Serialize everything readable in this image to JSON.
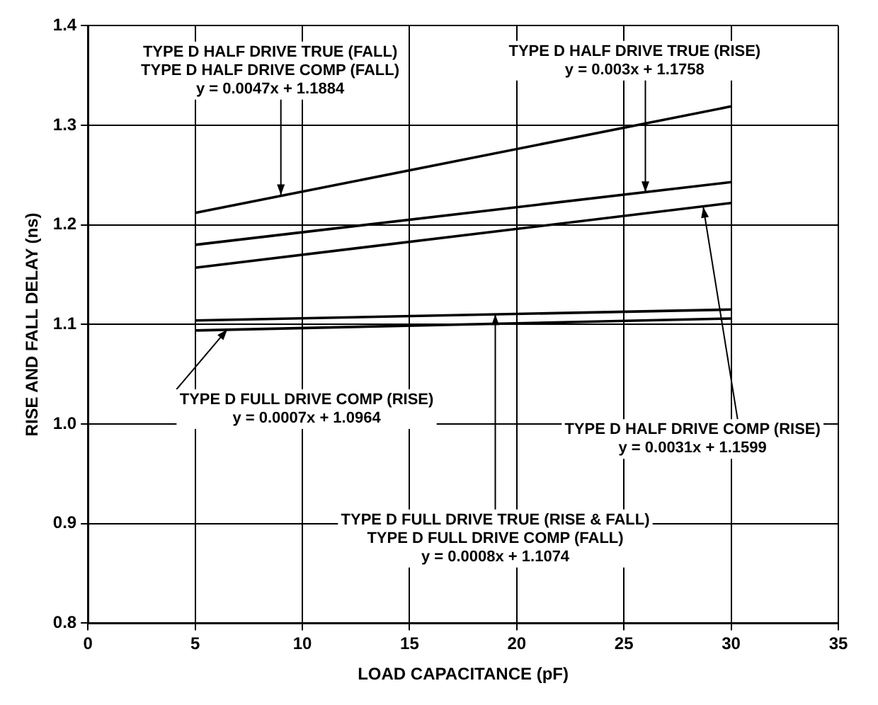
{
  "chart_data": {
    "type": "line",
    "xlabel": "LOAD CAPACITANCE (pF)",
    "ylabel": "RISE AND FALL DELAY (ns)",
    "x": [
      5,
      30
    ],
    "series": [
      {
        "color": "#000000",
        "values": [
          1.212,
          1.319
        ]
      },
      {
        "color": "#000000",
        "values": [
          1.18,
          1.243
        ]
      },
      {
        "color": "#000000",
        "values": [
          1.157,
          1.222
        ]
      },
      {
        "color": "#000000",
        "values": [
          1.104,
          1.115
        ]
      },
      {
        "color": "#000000",
        "values": [
          1.094,
          1.106
        ]
      }
    ],
    "xlim": [
      0,
      35
    ],
    "xticks": [
      0,
      5,
      10,
      15,
      20,
      25,
      30,
      35
    ],
    "ylim": [
      0.8,
      1.4
    ],
    "yticks": [
      {
        "value": 0.8,
        "label": "0.8"
      },
      {
        "value": 0.9,
        "label": "0.9"
      },
      {
        "value": 1.0,
        "label": "1.0"
      },
      {
        "value": 1.1,
        "label": "1.1"
      },
      {
        "value": 1.2,
        "label": "1.2"
      },
      {
        "value": 1.3,
        "label": "1.3"
      },
      {
        "value": 1.4,
        "label": "1.4"
      }
    ],
    "annotations": [
      {
        "text": "TYPE D HALF DRIVE TRUE (FALL)\nTYPE D HALF DRIVE COMP (FALL)\ny = 0.0047x + 1.1884",
        "x": 9,
        "y": 1.23
      },
      {
        "text": "TYPE D HALF DRIVE TRUE (RISE)\ny = 0.003x + 1.1758",
        "x": 26,
        "y": 1.233
      },
      {
        "text": "TYPE D FULL DRIVE COMP (RISE)\ny = 0.0007x + 1.0964",
        "x": 6.5,
        "y": 1.095
      },
      {
        "text": "TYPE D HALF DRIVE COMP (RISE)\ny = 0.0031x + 1.1599",
        "x": 28.7,
        "y": 1.218
      },
      {
        "text": "TYPE D FULL DRIVE TRUE (RISE & FALL)\nTYPE D FULL DRIVE COMP (FALL)\ny = 0.0008x + 1.1074",
        "x": 19,
        "y": 1.11
      }
    ],
    "grid": true,
    "legend": false,
    "marker": "none",
    "line_style": "solid"
  }
}
